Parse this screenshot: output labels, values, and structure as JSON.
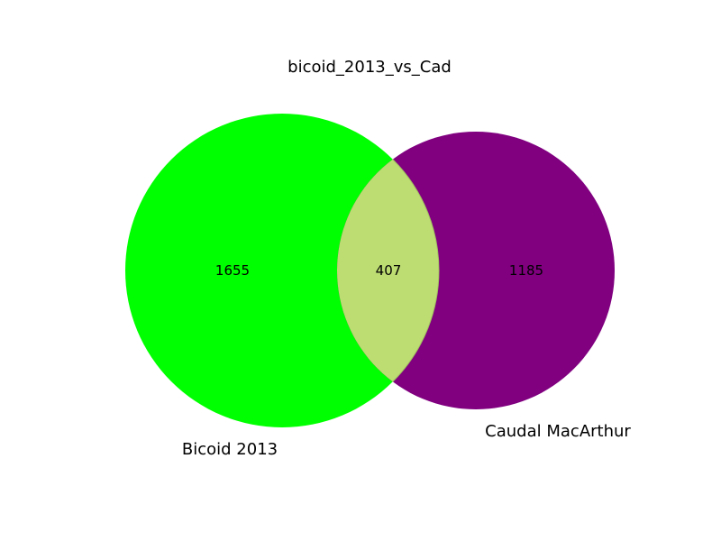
{
  "title": "bicoid_2013_vs_Cad",
  "sets": [
    {
      "name": "Bicoid 2013",
      "color": "#00ff00"
    },
    {
      "name": "Caudal MacArthur",
      "color": "#800080"
    }
  ],
  "intersection_color": "#bddd72",
  "chart_data": {
    "type": "venn",
    "title": "bicoid_2013_vs_Cad",
    "sets": [
      "Bicoid 2013",
      "Caudal MacArthur"
    ],
    "regions": [
      {
        "sets": [
          "Bicoid 2013"
        ],
        "label": "1655",
        "value": 1655
      },
      {
        "sets": [
          "Bicoid 2013",
          "Caudal MacArthur"
        ],
        "label": "407",
        "value": 407
      },
      {
        "sets": [
          "Caudal MacArthur"
        ],
        "label": "1185",
        "value": 1185
      }
    ]
  }
}
